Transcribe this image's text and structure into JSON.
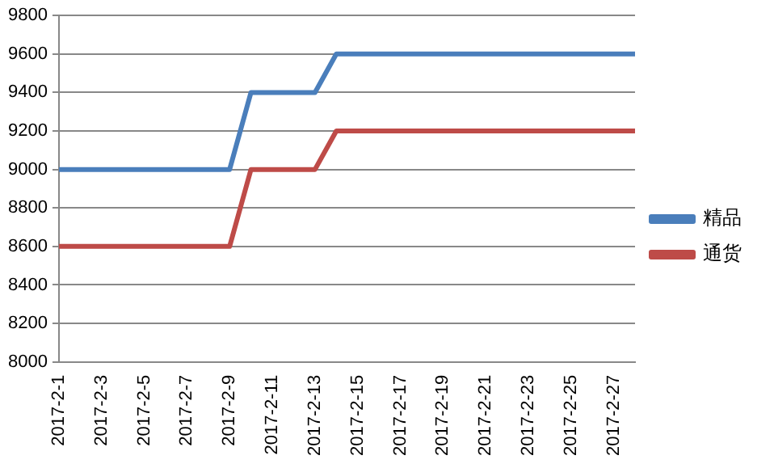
{
  "chart_data": {
    "type": "line",
    "categories": [
      "2017-2-1",
      null,
      "2017-2-3",
      null,
      "2017-2-5",
      null,
      "2017-2-7",
      null,
      "2017-2-9",
      null,
      "2017-2-11",
      null,
      "2017-2-13",
      null,
      "2017-2-15",
      null,
      "2017-2-17",
      null,
      "2017-2-19",
      null,
      "2017-2-21",
      null,
      "2017-2-23",
      null,
      "2017-2-25",
      null,
      "2017-2-27",
      null
    ],
    "series": [
      {
        "name": "精品",
        "color": "#4a7ebb",
        "values": [
          9000,
          9000,
          9000,
          9000,
          9000,
          9000,
          9000,
          9000,
          9000,
          9400,
          9400,
          9400,
          9400,
          9600,
          9600,
          9600,
          9600,
          9600,
          9600,
          9600,
          9600,
          9600,
          9600,
          9600,
          9600,
          9600,
          9600,
          9600
        ]
      },
      {
        "name": "通货",
        "color": "#be4b48",
        "values": [
          8600,
          8600,
          8600,
          8600,
          8600,
          8600,
          8600,
          8600,
          8600,
          9000,
          9000,
          9000,
          9000,
          9200,
          9200,
          9200,
          9200,
          9200,
          9200,
          9200,
          9200,
          9200,
          9200,
          9200,
          9200,
          9200,
          9200,
          9200
        ]
      }
    ],
    "ylim": [
      8000,
      9800
    ],
    "yticks": [
      8000,
      8200,
      8400,
      8600,
      8800,
      9000,
      9200,
      9400,
      9600,
      9800
    ],
    "grid": "y",
    "legend": "right",
    "marker": "none"
  }
}
